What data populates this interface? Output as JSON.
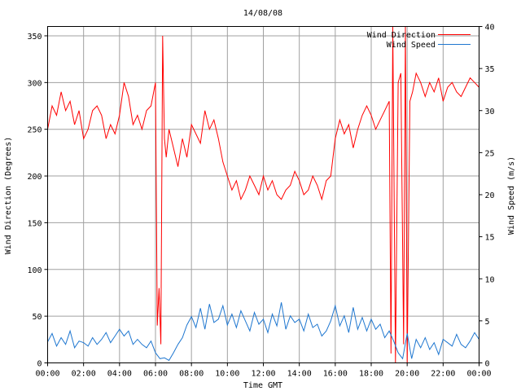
{
  "chart_data": {
    "type": "line",
    "title": "14/08/08",
    "xlabel": "Time GMT",
    "ylabel_left": "Wind Direction (Degrees)",
    "ylabel_right": "Wind Speed (m/s)",
    "x_ticks": [
      "00:00",
      "02:00",
      "04:00",
      "06:00",
      "08:00",
      "10:00",
      "12:00",
      "14:00",
      "16:00",
      "18:00",
      "20:00",
      "22:00",
      "00:00"
    ],
    "x_range_hours": [
      0,
      24
    ],
    "y_left_ticks": [
      "0",
      "50",
      "100",
      "150",
      "200",
      "250",
      "300",
      "350"
    ],
    "y_left_range": [
      0,
      360
    ],
    "y_right_ticks": [
      "0",
      "5",
      "10",
      "15",
      "20",
      "25",
      "30",
      "35",
      "40"
    ],
    "y_right_range": [
      0,
      40
    ],
    "grid": true,
    "legend_position": "top-right",
    "series": [
      {
        "name": "Wind Direction",
        "axis": "left",
        "color": "#ff0000",
        "x": [
          0,
          0.25,
          0.5,
          0.75,
          1,
          1.25,
          1.5,
          1.75,
          2,
          2.25,
          2.5,
          2.75,
          3,
          3.25,
          3.5,
          3.75,
          4,
          4.25,
          4.5,
          4.75,
          5,
          5.25,
          5.5,
          5.75,
          6,
          6.1,
          6.2,
          6.3,
          6.4,
          6.5,
          6.6,
          6.75,
          7,
          7.25,
          7.5,
          7.75,
          8,
          8.25,
          8.5,
          8.75,
          9,
          9.25,
          9.5,
          9.75,
          10,
          10.25,
          10.5,
          10.75,
          11,
          11.25,
          11.5,
          11.75,
          12,
          12.25,
          12.5,
          12.75,
          13,
          13.25,
          13.5,
          13.75,
          14,
          14.25,
          14.5,
          14.75,
          15,
          15.25,
          15.5,
          15.75,
          16,
          16.25,
          16.5,
          16.75,
          17,
          17.25,
          17.5,
          17.75,
          18,
          18.25,
          18.5,
          18.75,
          19,
          19.1,
          19.2,
          19.35,
          19.5,
          19.65,
          19.8,
          19.9,
          20,
          20.15,
          20.3,
          20.5,
          20.75,
          21,
          21.25,
          21.5,
          21.75,
          22,
          22.25,
          22.5,
          22.75,
          23,
          23.25,
          23.5,
          23.75,
          24
        ],
        "y": [
          250,
          275,
          265,
          290,
          270,
          280,
          255,
          270,
          240,
          250,
          270,
          275,
          265,
          240,
          255,
          245,
          265,
          300,
          285,
          255,
          265,
          250,
          270,
          275,
          300,
          40,
          80,
          20,
          350,
          240,
          220,
          250,
          230,
          210,
          240,
          220,
          255,
          245,
          235,
          270,
          250,
          260,
          240,
          215,
          200,
          185,
          195,
          175,
          185,
          200,
          190,
          180,
          200,
          185,
          195,
          180,
          175,
          185,
          190,
          205,
          195,
          180,
          185,
          200,
          190,
          175,
          195,
          200,
          240,
          260,
          245,
          255,
          230,
          250,
          265,
          275,
          265,
          250,
          260,
          270,
          280,
          10,
          360,
          0,
          300,
          310,
          20,
          360,
          0,
          280,
          290,
          310,
          300,
          285,
          300,
          290,
          305,
          280,
          295,
          300,
          290,
          285,
          295,
          305,
          300,
          295
        ]
      },
      {
        "name": "Wind Speed",
        "axis": "right",
        "color": "#1f77d0",
        "x": [
          0,
          0.25,
          0.5,
          0.75,
          1,
          1.25,
          1.5,
          1.75,
          2,
          2.25,
          2.5,
          2.75,
          3,
          3.25,
          3.5,
          3.75,
          4,
          4.25,
          4.5,
          4.75,
          5,
          5.25,
          5.5,
          5.75,
          6,
          6.25,
          6.5,
          6.75,
          7,
          7.25,
          7.5,
          7.75,
          8,
          8.25,
          8.5,
          8.75,
          9,
          9.25,
          9.5,
          9.75,
          10,
          10.25,
          10.5,
          10.75,
          11,
          11.25,
          11.5,
          11.75,
          12,
          12.25,
          12.5,
          12.75,
          13,
          13.25,
          13.5,
          13.75,
          14,
          14.25,
          14.5,
          14.75,
          15,
          15.25,
          15.5,
          15.75,
          16,
          16.25,
          16.5,
          16.75,
          17,
          17.25,
          17.5,
          17.75,
          18,
          18.25,
          18.5,
          18.75,
          19,
          19.25,
          19.5,
          19.75,
          20,
          20.25,
          20.5,
          20.75,
          21,
          21.25,
          21.5,
          21.75,
          22,
          22.25,
          22.5,
          22.75,
          23,
          23.25,
          23.5,
          23.75,
          24
        ],
        "y": [
          2.5,
          3.5,
          2.0,
          3.0,
          2.2,
          3.8,
          1.8,
          2.6,
          2.4,
          2.0,
          3.0,
          2.2,
          2.8,
          3.6,
          2.4,
          3.2,
          4.0,
          3.2,
          3.8,
          2.2,
          2.8,
          2.2,
          1.8,
          2.6,
          1.2,
          0.5,
          0.6,
          0.3,
          1.2,
          2.2,
          3.0,
          4.5,
          5.5,
          4.2,
          6.5,
          4.0,
          7.0,
          4.8,
          5.2,
          6.8,
          4.5,
          5.8,
          4.2,
          6.2,
          5.0,
          3.8,
          6.0,
          4.6,
          5.2,
          3.6,
          5.8,
          4.4,
          7.2,
          4.0,
          5.6,
          4.8,
          5.2,
          3.8,
          5.8,
          4.2,
          4.6,
          3.2,
          3.8,
          5.0,
          6.8,
          4.4,
          5.6,
          3.6,
          6.6,
          4.0,
          5.4,
          3.8,
          5.2,
          4.0,
          4.6,
          3.0,
          3.8,
          2.6,
          1.2,
          0.5,
          3.5,
          0.5,
          2.8,
          1.8,
          3.0,
          1.6,
          2.4,
          1.0,
          2.8,
          2.4,
          2.0,
          3.4,
          2.2,
          1.8,
          2.6,
          3.6,
          2.8
        ]
      }
    ]
  }
}
